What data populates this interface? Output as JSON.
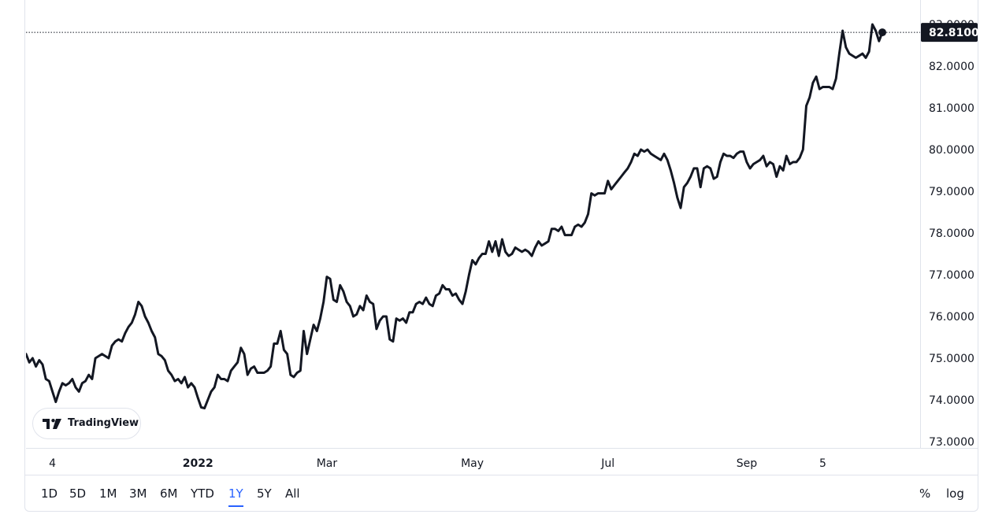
{
  "chart_data": {
    "type": "line",
    "series": [
      {
        "values": [
          75.1,
          74.9,
          75.0,
          74.8,
          74.95,
          74.85,
          74.5,
          74.45,
          74.2,
          73.95,
          74.2,
          74.4,
          74.35,
          74.4,
          74.5,
          74.3,
          74.2,
          74.4,
          74.45,
          74.6,
          74.5,
          75.0,
          75.05,
          75.1,
          75.05,
          75.0,
          75.3,
          75.4,
          75.45,
          75.4,
          75.6,
          75.75,
          75.85,
          76.05,
          76.35,
          76.25,
          76.0,
          75.85,
          75.65,
          75.5,
          75.1,
          75.05,
          74.95,
          74.7,
          74.6,
          74.45,
          74.5,
          74.4,
          74.55,
          74.3,
          74.4,
          74.3,
          74.05,
          73.82,
          73.8,
          74.0,
          74.2,
          74.3,
          74.6,
          74.5,
          74.5,
          74.45,
          74.7,
          74.8,
          74.9,
          75.25,
          75.1,
          74.6,
          74.75,
          74.8,
          74.65,
          74.65,
          74.65,
          74.7,
          74.8,
          75.35,
          75.35,
          75.65,
          75.2,
          75.1,
          74.6,
          74.55,
          74.65,
          74.7,
          75.65,
          75.1,
          75.45,
          75.8,
          75.65,
          75.95,
          76.35,
          76.95,
          76.9,
          76.4,
          76.35,
          76.75,
          76.6,
          76.35,
          76.25,
          76.0,
          76.05,
          76.25,
          76.15,
          76.5,
          76.35,
          76.3,
          75.7,
          75.9,
          76.0,
          76.0,
          75.45,
          75.4,
          75.95,
          75.9,
          75.95,
          75.85,
          76.1,
          76.1,
          76.3,
          76.35,
          76.3,
          76.45,
          76.3,
          76.25,
          76.5,
          76.55,
          76.75,
          76.65,
          76.65,
          76.5,
          76.55,
          76.4,
          76.3,
          76.6,
          77.0,
          77.35,
          77.25,
          77.4,
          77.5,
          77.5,
          77.8,
          77.55,
          77.8,
          77.45,
          77.85,
          77.55,
          77.45,
          77.5,
          77.65,
          77.6,
          77.55,
          77.6,
          77.55,
          77.45,
          77.65,
          77.8,
          77.7,
          77.75,
          77.8,
          78.1,
          78.1,
          78.05,
          78.15,
          77.95,
          77.95,
          77.95,
          78.15,
          78.2,
          78.15,
          78.25,
          78.45,
          78.95,
          78.9,
          78.95,
          78.95,
          78.95,
          79.25,
          79.05,
          79.15,
          79.25,
          79.35,
          79.45,
          79.55,
          79.7,
          79.9,
          79.85,
          80.0,
          79.95,
          80.0,
          79.9,
          79.85,
          79.8,
          79.75,
          79.9,
          79.75,
          79.5,
          79.2,
          78.85,
          78.6,
          79.1,
          79.2,
          79.35,
          79.55,
          79.55,
          79.1,
          79.55,
          79.6,
          79.55,
          79.3,
          79.35,
          79.7,
          79.9,
          79.85,
          79.85,
          79.8,
          79.9,
          79.95,
          79.95,
          79.7,
          79.55,
          79.65,
          79.7,
          79.75,
          79.85,
          79.6,
          79.7,
          79.65,
          79.35,
          79.6,
          79.5,
          79.85,
          79.65,
          79.7,
          79.7,
          79.8,
          80.0,
          81.05,
          81.25,
          81.6,
          81.75,
          81.45,
          81.5,
          81.5,
          81.5,
          81.45,
          81.7,
          82.3,
          82.85,
          82.45,
          82.3,
          82.25,
          82.2,
          82.25,
          82.3,
          82.2,
          82.35,
          83.0,
          82.85,
          82.6,
          82.81
        ]
      }
    ],
    "ylim": [
      72.7,
      83.5
    ],
    "y_ticks": [
      "73.0000",
      "74.0000",
      "75.0000",
      "76.0000",
      "77.0000",
      "78.0000",
      "79.0000",
      "80.0000",
      "81.0000",
      "82.0000",
      "83.0000"
    ],
    "y_tick_values": [
      73,
      74,
      75,
      76,
      77,
      78,
      79,
      80,
      81,
      82,
      83
    ],
    "x_ticks": [
      {
        "label": "4",
        "index": 8,
        "bold": false
      },
      {
        "label": "2022",
        "index": 52,
        "bold": true
      },
      {
        "label": "Mar",
        "index": 91,
        "bold": false
      },
      {
        "label": "May",
        "index": 135,
        "bold": false
      },
      {
        "label": "Jul",
        "index": 176,
        "bold": false
      },
      {
        "label": "Sep",
        "index": 218,
        "bold": false
      },
      {
        "label": "5",
        "index": 241,
        "bold": false
      }
    ],
    "last_value": 82.81,
    "last_value_label": "82.8100",
    "line_color": "#131722",
    "grid": false
  },
  "toolbar": {
    "ranges": [
      "1D",
      "5D",
      "1M",
      "3M",
      "6M",
      "YTD",
      "1Y",
      "5Y",
      "All"
    ],
    "active_range": "1Y",
    "percent_label": "%",
    "log_label": "log"
  },
  "logo": {
    "text": "TradingView"
  }
}
